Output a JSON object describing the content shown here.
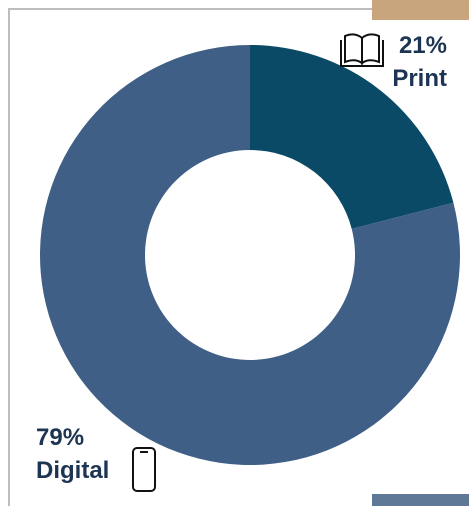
{
  "chart_data": {
    "type": "donut",
    "categories": [
      "Print",
      "Digital"
    ],
    "values": [
      21,
      79
    ],
    "value_labels": [
      "21%",
      "79%"
    ],
    "colors": [
      "#0b4a66",
      "#3f5f87"
    ]
  }
}
